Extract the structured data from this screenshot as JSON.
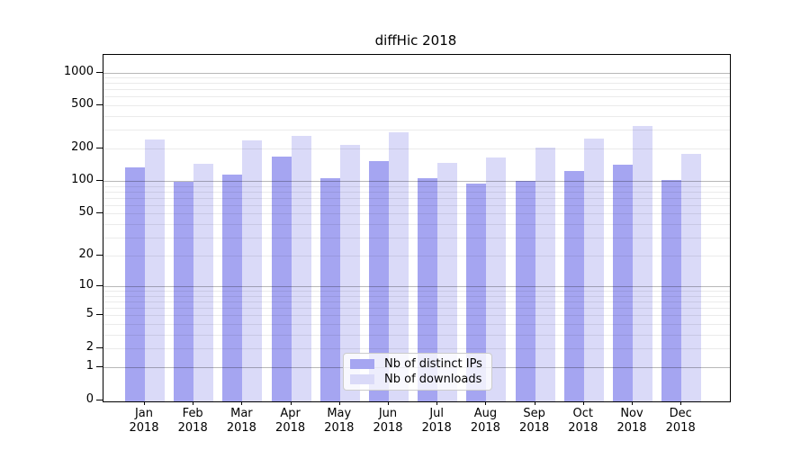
{
  "chart_data": {
    "type": "bar",
    "title": "diffHic 2018",
    "x_year": "2018",
    "categories": [
      "Jan",
      "Feb",
      "Mar",
      "Apr",
      "May",
      "Jun",
      "Jul",
      "Aug",
      "Sep",
      "Oct",
      "Nov",
      "Dec"
    ],
    "series": [
      {
        "name": "Nb of distinct IPs",
        "color": "#a5a5f1",
        "values": [
          135,
          98,
          116,
          170,
          107,
          153,
          107,
          95,
          100,
          125,
          142,
          102
        ]
      },
      {
        "name": "Nb of downloads",
        "color": "#dadaf8",
        "values": [
          240,
          145,
          238,
          260,
          217,
          280,
          147,
          165,
          205,
          248,
          325,
          178
        ]
      }
    ],
    "yscale": "log1p",
    "ylim": [
      0,
      1460
    ],
    "yticks": [
      0,
      1,
      2,
      5,
      10,
      20,
      50,
      100,
      200,
      500,
      1000
    ],
    "grid": {
      "major": [
        1,
        10,
        100,
        1000
      ],
      "minor": [
        2,
        3,
        4,
        5,
        6,
        7,
        8,
        9,
        20,
        30,
        40,
        50,
        60,
        70,
        80,
        90,
        200,
        300,
        400,
        500,
        600,
        700,
        800,
        900
      ],
      "on": true
    },
    "legend_position": "lower-center"
  }
}
